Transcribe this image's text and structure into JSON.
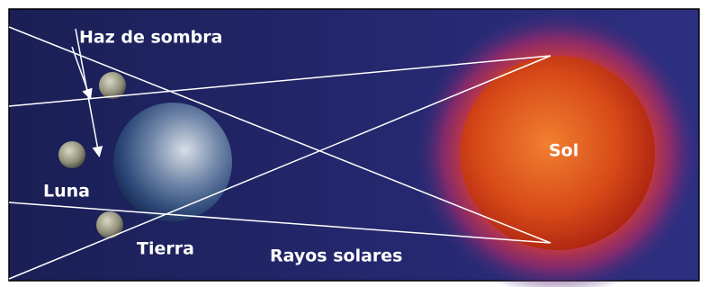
{
  "labels": {
    "shadow": "Haz de sombra",
    "moon": "Luna",
    "earth": "Tierra",
    "rays": "Rayos solares",
    "sun": "Sol"
  }
}
